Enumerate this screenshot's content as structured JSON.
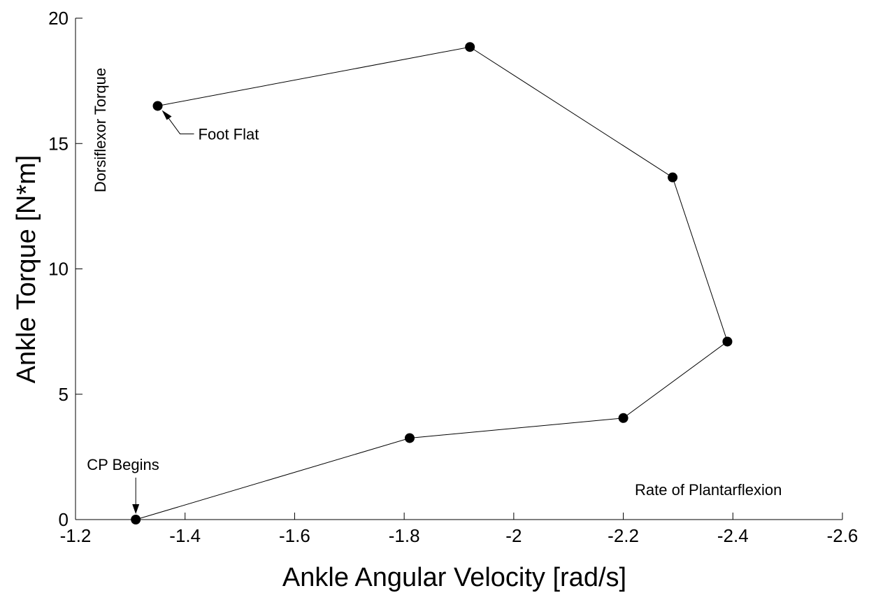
{
  "chart_data": {
    "type": "line",
    "xlabel": "Ankle Angular Velocity [rad/s]",
    "ylabel": "Ankle Torque [N*m]",
    "xlim": [
      -1.2,
      -2.6
    ],
    "ylim": [
      0,
      20
    ],
    "x_reversed": true,
    "grid": false,
    "x_ticks": [
      -1.2,
      -1.4,
      -1.6,
      -1.8,
      -2,
      -2.2,
      -2.4,
      -2.6
    ],
    "y_ticks": [
      0,
      5,
      10,
      15,
      20
    ],
    "x_tick_labels": [
      "-1.2",
      "-1.4",
      "-1.6",
      "-1.8",
      "-2",
      "-2.2",
      "-2.4",
      "-2.6"
    ],
    "y_tick_labels": [
      "0",
      "5",
      "10",
      "15",
      "20"
    ],
    "series": [
      {
        "x": [
          -1.35,
          -1.92,
          -2.29,
          -2.39,
          -2.2,
          -1.81,
          -1.31
        ],
        "y": [
          16.5,
          18.85,
          13.65,
          7.1,
          4.05,
          3.25,
          0.0
        ],
        "color": "#000000",
        "marker": "circle"
      }
    ],
    "annotations": [
      {
        "text": "Foot Flat",
        "x": -1.35,
        "y": 16.5
      },
      {
        "text": "CP Begins",
        "x": -1.31,
        "y": 0.0
      },
      {
        "text": "Dorsiflexor Torque"
      },
      {
        "text": "Rate of Plantarflexion"
      }
    ]
  }
}
